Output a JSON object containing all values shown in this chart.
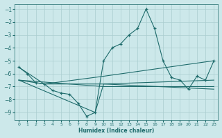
{
  "xlabel": "Humidex (Indice chaleur)",
  "bg_color": "#cce8ea",
  "grid_color": "#aacdd0",
  "line_color": "#1e6b6b",
  "xlim": [
    -0.5,
    23.5
  ],
  "ylim": [
    -9.6,
    -0.6
  ],
  "yticks": [
    -1,
    -2,
    -3,
    -4,
    -5,
    -6,
    -7,
    -8,
    -9
  ],
  "xticks": [
    0,
    1,
    2,
    3,
    4,
    5,
    6,
    7,
    8,
    9,
    10,
    11,
    12,
    13,
    14,
    15,
    16,
    17,
    18,
    19,
    20,
    21,
    22,
    23
  ],
  "main_series": [
    [
      0,
      -5.5
    ],
    [
      1,
      -6.0
    ],
    [
      2,
      -6.7
    ],
    [
      3,
      -6.8
    ],
    [
      4,
      -7.3
    ],
    [
      5,
      -7.5
    ],
    [
      6,
      -7.6
    ],
    [
      7,
      -8.3
    ],
    [
      8,
      -9.3
    ],
    [
      9,
      -9.0
    ],
    [
      10,
      -5.0
    ],
    [
      11,
      -4.0
    ],
    [
      12,
      -3.7
    ],
    [
      13,
      -3.0
    ],
    [
      14,
      -2.5
    ],
    [
      15,
      -1.0
    ],
    [
      16,
      -2.5
    ],
    [
      17,
      -5.0
    ],
    [
      18,
      -6.3
    ],
    [
      19,
      -6.5
    ],
    [
      20,
      -7.2
    ],
    [
      21,
      -6.2
    ],
    [
      22,
      -6.5
    ],
    [
      23,
      -5.0
    ]
  ],
  "line_upper": [
    [
      0,
      -5.5
    ],
    [
      3,
      -6.8
    ],
    [
      10,
      -6.2
    ],
    [
      23,
      -5.0
    ]
  ],
  "line_mid1": [
    [
      0,
      -6.5
    ],
    [
      3,
      -6.8
    ],
    [
      10,
      -6.8
    ],
    [
      23,
      -6.5
    ]
  ],
  "line_mid2": [
    [
      0,
      -6.5
    ],
    [
      10,
      -7.0
    ],
    [
      23,
      -7.0
    ]
  ],
  "line_lower": [
    [
      0,
      -6.5
    ],
    [
      9,
      -9.0
    ],
    [
      10,
      -6.8
    ],
    [
      23,
      -7.2
    ]
  ]
}
